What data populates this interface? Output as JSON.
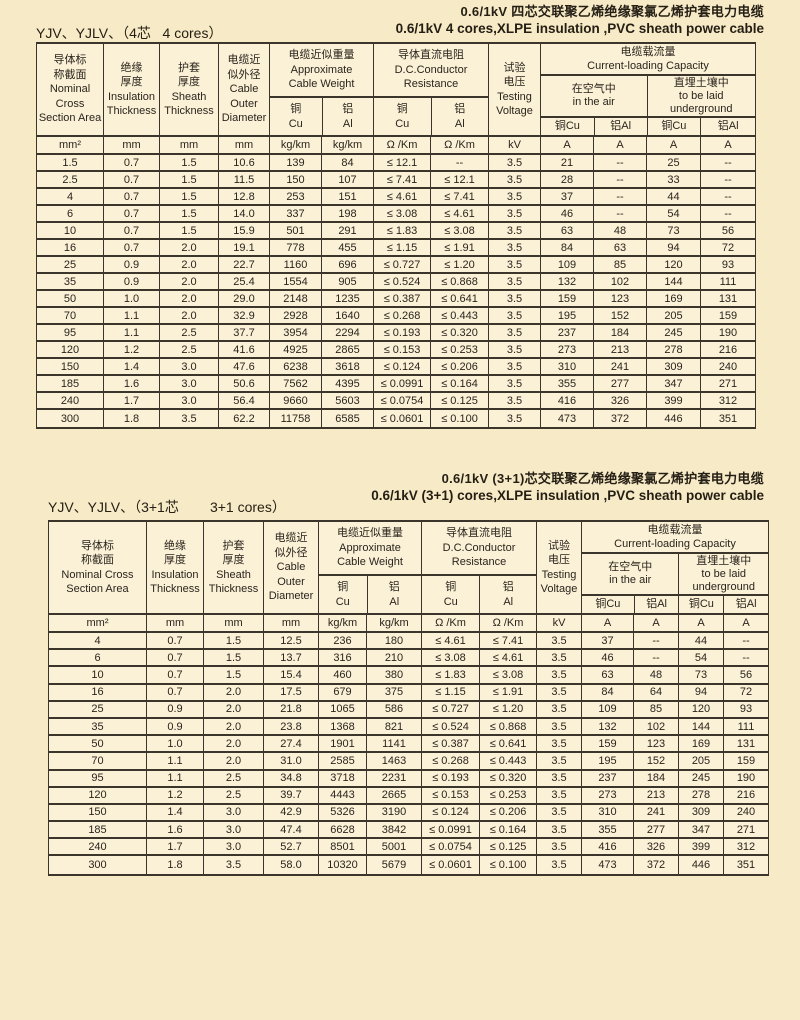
{
  "colors": {
    "page_background": "#f7eac6",
    "table_background": "#fbf1d7",
    "grid_line": "#3b352c",
    "text": "#2b241c"
  },
  "tables": [
    {
      "model_label": "YJV、YJLV、（4芯   4 cores）",
      "title_zh": "0.6/1kV 四芯交联聚乙烯绝缘聚氯乙烯护套电力电缆",
      "title_en": "0.6/1kV 4 cores,XLPE insulation ,PVC sheath power cable",
      "header": {
        "nominal": "导体标\n称截面\nNominal\nCross\nSection Area",
        "insulation": "绝缘\n厚度\nInsulation\nThickness",
        "sheath": "护套\n厚度\nSheath\nThickness",
        "diameter": "电缆近\n似外径\nCable\nOuter\nDiameter",
        "weight_title": "电缆近似重量\nApproximate\nCable Weight",
        "resistance_title": "导体直流电阻\nD.C.Conductor\nResistance",
        "voltage": "试验\n电压\nTesting\nVoltage",
        "capacity_title": "电缆载流量\nCurrent-loading Capacity",
        "air": "在空气中\nin the air",
        "underground": "直埋土壤中\nto be laid\nunderground",
        "cu_stacked": "铜\nCu",
        "al_stacked": "铝\nAl",
        "cu_compact": "铜Cu",
        "al_compact": "铝Al"
      },
      "units": [
        "mm²",
        "mm",
        "mm",
        "mm",
        "kg/km",
        "kg/km",
        "Ω /Km",
        "Ω /Km",
        "kV",
        "A",
        "A",
        "A",
        "A"
      ],
      "rows": [
        [
          "1.5",
          "0.7",
          "1.5",
          "10.6",
          "139",
          "84",
          "≤ 12.1",
          "--",
          "3.5",
          "21",
          "--",
          "25",
          "--"
        ],
        [
          "2.5",
          "0.7",
          "1.5",
          "11.5",
          "150",
          "107",
          "≤ 7.41",
          "≤ 12.1",
          "3.5",
          "28",
          "--",
          "33",
          "--"
        ],
        [
          "4",
          "0.7",
          "1.5",
          "12.8",
          "253",
          "151",
          "≤ 4.61",
          "≤ 7.41",
          "3.5",
          "37",
          "--",
          "44",
          "--"
        ],
        [
          "6",
          "0.7",
          "1.5",
          "14.0",
          "337",
          "198",
          "≤ 3.08",
          "≤ 4.61",
          "3.5",
          "46",
          "--",
          "54",
          "--"
        ],
        [
          "10",
          "0.7",
          "1.5",
          "15.9",
          "501",
          "291",
          "≤ 1.83",
          "≤ 3.08",
          "3.5",
          "63",
          "48",
          "73",
          "56"
        ],
        [
          "16",
          "0.7",
          "2.0",
          "19.1",
          "778",
          "455",
          "≤ 1.15",
          "≤ 1.91",
          "3.5",
          "84",
          "63",
          "94",
          "72"
        ],
        [
          "25",
          "0.9",
          "2.0",
          "22.7",
          "1160",
          "696",
          "≤ 0.727",
          "≤ 1.20",
          "3.5",
          "109",
          "85",
          "120",
          "93"
        ],
        [
          "35",
          "0.9",
          "2.0",
          "25.4",
          "1554",
          "905",
          "≤ 0.524",
          "≤ 0.868",
          "3.5",
          "132",
          "102",
          "144",
          "111"
        ],
        [
          "50",
          "1.0",
          "2.0",
          "29.0",
          "2148",
          "1235",
          "≤ 0.387",
          "≤ 0.641",
          "3.5",
          "159",
          "123",
          "169",
          "131"
        ],
        [
          "70",
          "1.1",
          "2.0",
          "32.9",
          "2928",
          "1640",
          "≤ 0.268",
          "≤ 0.443",
          "3.5",
          "195",
          "152",
          "205",
          "159"
        ],
        [
          "95",
          "1.1",
          "2.5",
          "37.7",
          "3954",
          "2294",
          "≤ 0.193",
          "≤ 0.320",
          "3.5",
          "237",
          "184",
          "245",
          "190"
        ],
        [
          "120",
          "1.2",
          "2.5",
          "41.6",
          "4925",
          "2865",
          "≤ 0.153",
          "≤ 0.253",
          "3.5",
          "273",
          "213",
          "278",
          "216"
        ],
        [
          "150",
          "1.4",
          "3.0",
          "47.6",
          "6238",
          "3618",
          "≤ 0.124",
          "≤ 0.206",
          "3.5",
          "310",
          "241",
          "309",
          "240"
        ],
        [
          "185",
          "1.6",
          "3.0",
          "50.6",
          "7562",
          "4395",
          "≤ 0.0991",
          "≤ 0.164",
          "3.5",
          "355",
          "277",
          "347",
          "271"
        ],
        [
          "240",
          "1.7",
          "3.0",
          "56.4",
          "9660",
          "5603",
          "≤ 0.0754",
          "≤ 0.125",
          "3.5",
          "416",
          "326",
          "399",
          "312"
        ],
        [
          "300",
          "1.8",
          "3.5",
          "62.2",
          "11758",
          "6585",
          "≤ 0.0601",
          "≤ 0.100",
          "3.5",
          "473",
          "372",
          "446",
          "351"
        ]
      ]
    },
    {
      "model_label": "YJV、YJLV、（3+1芯        3+1 cores）",
      "title_zh": "0.6/1kV (3+1)芯交联聚乙烯绝缘聚氯乙烯护套电力电缆",
      "title_en": "0.6/1kV (3+1) cores,XLPE insulation ,PVC sheath power cable",
      "header": {
        "nominal": "导体标\n称截面\nNominal Cross\nSection Area",
        "insulation": "绝缘\n厚度\nInsulation\nThickness",
        "sheath": "护套\n厚度\nSheath\nThickness",
        "diameter": "电缆近\n似外径\nCable\nOuter\nDiameter",
        "weight_title": "电缆近似重量\nApproximate\nCable Weight",
        "resistance_title": "导体直流电阻\nD.C.Conductor\nResistance",
        "voltage": "试验\n电压\nTesting\nVoltage",
        "capacity_title": "电缆载流量\nCurrent-loading Capacity",
        "air": "在空气中\nin the air",
        "underground": "直埋土壤中\nto be laid\nunderground",
        "cu_stacked": "铜\nCu",
        "al_stacked": "铝\nAl",
        "cu_compact": "铜Cu",
        "al_compact": "铝Al"
      },
      "units": [
        "mm²",
        "mm",
        "mm",
        "mm",
        "kg/km",
        "kg/km",
        "Ω /Km",
        "Ω /Km",
        "kV",
        "A",
        "A",
        "A",
        "A"
      ],
      "rows": [
        [
          "4",
          "0.7",
          "1.5",
          "12.5",
          "236",
          "180",
          "≤ 4.61",
          "≤ 7.41",
          "3.5",
          "37",
          "--",
          "44",
          "--"
        ],
        [
          "6",
          "0.7",
          "1.5",
          "13.7",
          "316",
          "210",
          "≤ 3.08",
          "≤ 4.61",
          "3.5",
          "46",
          "--",
          "54",
          "--"
        ],
        [
          "10",
          "0.7",
          "1.5",
          "15.4",
          "460",
          "380",
          "≤ 1.83",
          "≤ 3.08",
          "3.5",
          "63",
          "48",
          "73",
          "56"
        ],
        [
          "16",
          "0.7",
          "2.0",
          "17.5",
          "679",
          "375",
          "≤ 1.15",
          "≤ 1.91",
          "3.5",
          "84",
          "64",
          "94",
          "72"
        ],
        [
          "25",
          "0.9",
          "2.0",
          "21.8",
          "1065",
          "586",
          "≤ 0.727",
          "≤ 1.20",
          "3.5",
          "109",
          "85",
          "120",
          "93"
        ],
        [
          "35",
          "0.9",
          "2.0",
          "23.8",
          "1368",
          "821",
          "≤ 0.524",
          "≤ 0.868",
          "3.5",
          "132",
          "102",
          "144",
          "111"
        ],
        [
          "50",
          "1.0",
          "2.0",
          "27.4",
          "1901",
          "1141",
          "≤ 0.387",
          "≤ 0.641",
          "3.5",
          "159",
          "123",
          "169",
          "131"
        ],
        [
          "70",
          "1.1",
          "2.0",
          "31.0",
          "2585",
          "1463",
          "≤ 0.268",
          "≤ 0.443",
          "3.5",
          "195",
          "152",
          "205",
          "159"
        ],
        [
          "95",
          "1.1",
          "2.5",
          "34.8",
          "3718",
          "2231",
          "≤ 0.193",
          "≤ 0.320",
          "3.5",
          "237",
          "184",
          "245",
          "190"
        ],
        [
          "120",
          "1.2",
          "2.5",
          "39.7",
          "4443",
          "2665",
          "≤ 0.153",
          "≤ 0.253",
          "3.5",
          "273",
          "213",
          "278",
          "216"
        ],
        [
          "150",
          "1.4",
          "3.0",
          "42.9",
          "5326",
          "3190",
          "≤ 0.124",
          "≤ 0.206",
          "3.5",
          "310",
          "241",
          "309",
          "240"
        ],
        [
          "185",
          "1.6",
          "3.0",
          "47.4",
          "6628",
          "3842",
          "≤ 0.0991",
          "≤ 0.164",
          "3.5",
          "355",
          "277",
          "347",
          "271"
        ],
        [
          "240",
          "1.7",
          "3.0",
          "52.7",
          "8501",
          "5001",
          "≤ 0.0754",
          "≤ 0.125",
          "3.5",
          "416",
          "326",
          "399",
          "312"
        ],
        [
          "300",
          "1.8",
          "3.5",
          "58.0",
          "10320",
          "5679",
          "≤ 0.0601",
          "≤ 0.100",
          "3.5",
          "473",
          "372",
          "446",
          "351"
        ]
      ]
    }
  ]
}
